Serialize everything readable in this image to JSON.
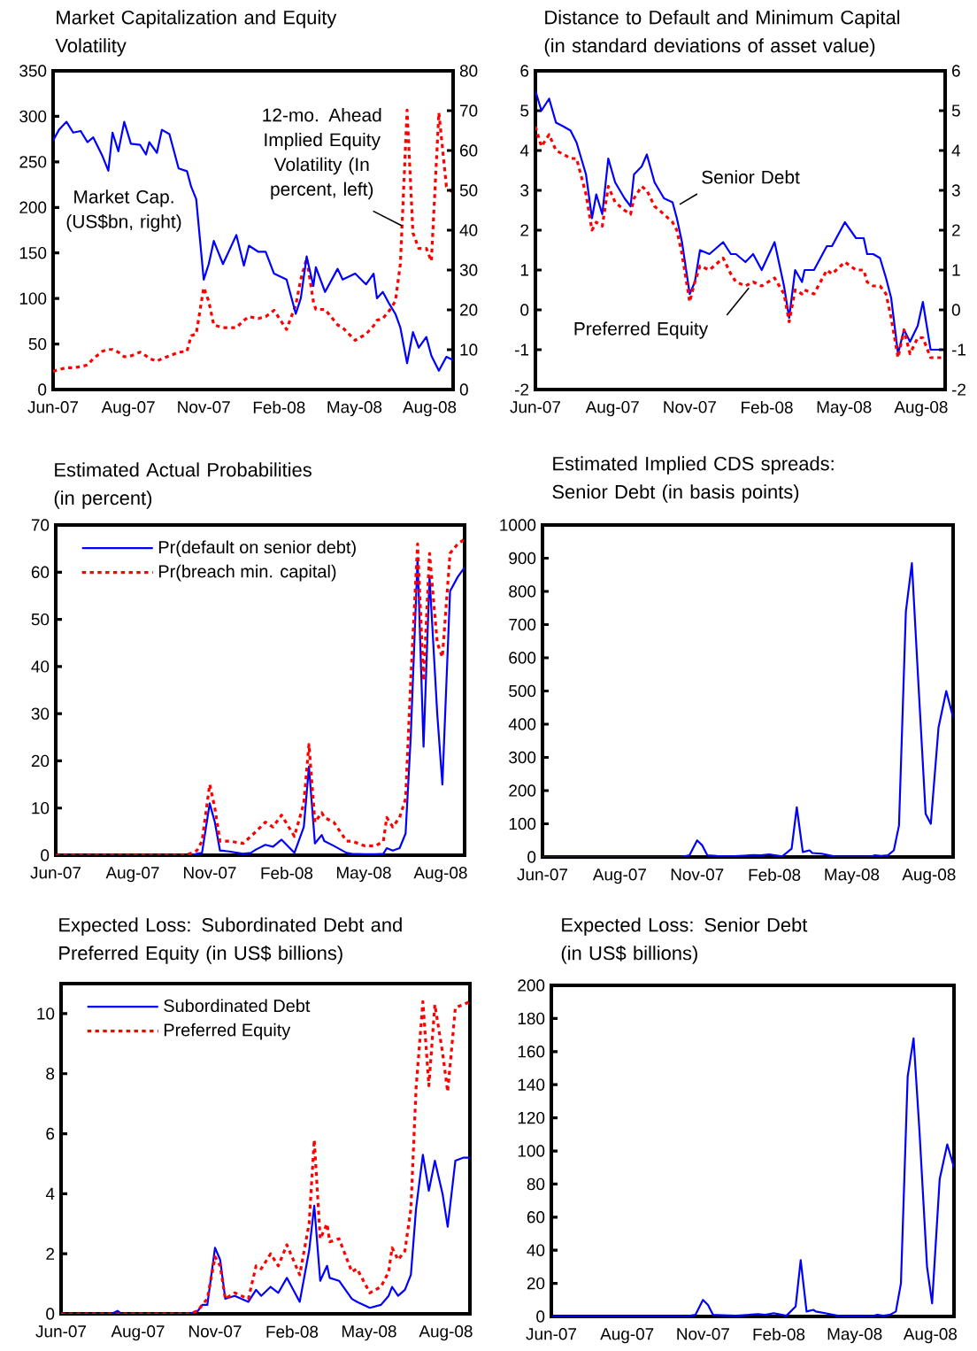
{
  "chart_data": [
    {
      "type": "line",
      "title": "Market Capitalization and Equity Volatility",
      "x": [
        "2007-06-01",
        "2007-06-08",
        "2007-06-17",
        "2007-06-25",
        "2007-07-04",
        "2007-07-12",
        "2007-07-19",
        "2007-07-30",
        "2007-08-06",
        "2007-08-11",
        "2007-08-18",
        "2007-08-25",
        "2007-09-02",
        "2007-09-13",
        "2007-09-20",
        "2007-09-24",
        "2007-10-03",
        "2007-10-09",
        "2007-10-18",
        "2007-10-29",
        "2007-11-08",
        "2007-11-13",
        "2007-11-19",
        "2007-11-28",
        "2007-12-04",
        "2007-12-10",
        "2007-12-21",
        "2008-01-06",
        "2008-01-15",
        "2008-01-21",
        "2008-02-01",
        "2008-02-10",
        "2008-02-20",
        "2008-03-06",
        "2008-03-17",
        "2008-03-23",
        "2008-03-30",
        "2008-04-07",
        "2008-04-10",
        "2008-04-21",
        "2008-05-06",
        "2008-05-12",
        "2008-05-27",
        "2008-06-09",
        "2008-06-18",
        "2008-06-22",
        "2008-06-29",
        "2008-07-07",
        "2008-07-14",
        "2008-07-20",
        "2008-07-28",
        "2008-08-04",
        "2008-08-11",
        "2008-08-20",
        "2008-08-26",
        "2008-09-04",
        "2008-09-13",
        "2008-09-21"
      ],
      "series": [
        {
          "name": "Market Cap. (US$bn, right)",
          "color": "#0000ff",
          "line_style": "solid",
          "axis": "y2",
          "values": [
            62.5,
            65.2,
            67.2,
            64.5,
            64.9,
            62.1,
            63.3,
            58.6,
            54.9,
            64.5,
            59.8,
            67.2,
            61.7,
            61.4,
            59.0,
            62.1,
            59.4,
            65.2,
            64.1,
            55.5,
            54.8,
            50.9,
            47.8,
            27.6,
            31.5,
            37.3,
            31.5,
            38.8,
            31.1,
            36.1,
            34.6,
            34.6,
            29.1,
            27.6,
            19.0,
            22.9,
            33.4,
            26.0,
            30.7,
            24.5,
            30.3,
            27.6,
            29.1,
            26.4,
            29.1,
            22.9,
            24.5,
            21.4,
            19.0,
            15.5,
            6.6,
            14.4,
            10.5,
            13.2,
            8.5,
            4.7,
            8.2,
            7.4
          ]
        },
        {
          "name": "12-mo. Ahead Implied Equity Volatility (In percent, left)",
          "color": "#ff0000",
          "line_style": "dotted",
          "axis": "y",
          "values": [
            20,
            22,
            24,
            24,
            25,
            27,
            34,
            42,
            44,
            44,
            41,
            36,
            37,
            41,
            37,
            34,
            31,
            34,
            37,
            41,
            42,
            59,
            61,
            112,
            97,
            71,
            68,
            68,
            76,
            80,
            78,
            80,
            87,
            66,
            93,
            121,
            144,
            97,
            88,
            88,
            71,
            68,
            54,
            61,
            70,
            76,
            78,
            87,
            97,
            138,
            307,
            172,
            155,
            155,
            141,
            304,
            223,
            216
          ]
        }
      ],
      "xlim": [
        "2007-06-01",
        "2008-09-21"
      ],
      "xticks": [
        {
          "value": "2007-06-01",
          "label": "Jun-07"
        },
        {
          "value": "2007-08-30",
          "label": "Aug-07"
        },
        {
          "value": "2007-11-28",
          "label": "Nov-07"
        },
        {
          "value": "2008-02-26",
          "label": "Feb-08"
        },
        {
          "value": "2008-05-26",
          "label": "May-08"
        },
        {
          "value": "2008-08-24",
          "label": "Aug-08"
        }
      ],
      "ylim": [
        0,
        350
      ],
      "yticks": [
        0,
        50,
        100,
        150,
        200,
        250,
        300,
        350
      ],
      "y2lim": [
        0,
        80
      ],
      "y2ticks": [
        0,
        10,
        20,
        30,
        40,
        50,
        60,
        70,
        80
      ]
    },
    {
      "type": "line",
      "title": "Distance to Default and Minimum Capital (in standard deviations of asset value)",
      "x": [
        "2007-06-01",
        "2007-06-08",
        "2007-06-17",
        "2007-06-25",
        "2007-07-04",
        "2007-07-12",
        "2007-07-19",
        "2007-07-30",
        "2007-08-06",
        "2007-08-11",
        "2007-08-18",
        "2007-08-25",
        "2007-09-02",
        "2007-09-13",
        "2007-09-20",
        "2007-09-24",
        "2007-10-03",
        "2007-10-09",
        "2007-10-18",
        "2007-10-29",
        "2007-11-08",
        "2007-11-13",
        "2007-11-19",
        "2007-11-28",
        "2007-12-04",
        "2007-12-10",
        "2007-12-21",
        "2008-01-06",
        "2008-01-15",
        "2008-01-21",
        "2008-02-01",
        "2008-02-10",
        "2008-02-20",
        "2008-03-06",
        "2008-03-17",
        "2008-03-23",
        "2008-03-30",
        "2008-04-07",
        "2008-04-10",
        "2008-04-21",
        "2008-05-06",
        "2008-05-12",
        "2008-05-27",
        "2008-06-09",
        "2008-06-18",
        "2008-06-22",
        "2008-06-29",
        "2008-07-07",
        "2008-07-14",
        "2008-07-20",
        "2008-07-28",
        "2008-08-04",
        "2008-08-11",
        "2008-08-20",
        "2008-08-26",
        "2008-09-04",
        "2008-09-13",
        "2008-09-21"
      ],
      "series": [
        {
          "name": "Senior Debt",
          "color": "#0000ff",
          "line_style": "solid",
          "values": [
            5.5,
            5.0,
            5.3,
            4.7,
            4.6,
            4.5,
            4.2,
            3.4,
            2.3,
            2.9,
            2.4,
            3.8,
            3.2,
            2.8,
            2.6,
            3.4,
            3.6,
            3.9,
            3.2,
            2.8,
            2.7,
            2.3,
            1.7,
            0.4,
            0.7,
            1.5,
            1.4,
            1.7,
            1.4,
            1.4,
            1.2,
            1.4,
            1.0,
            1.7,
            0.6,
            -0.2,
            1.0,
            0.7,
            1.0,
            1.0,
            1.6,
            1.6,
            2.2,
            1.8,
            1.8,
            1.4,
            1.4,
            1.3,
            0.8,
            0.3,
            -1.1,
            -0.5,
            -0.8,
            -0.4,
            0.2,
            -1.0,
            -1.0,
            -1.0
          ]
        },
        {
          "name": "Preferred Equity",
          "color": "#ff0000",
          "line_style": "dotted",
          "values": [
            4.6,
            4.1,
            4.4,
            4.0,
            3.9,
            3.8,
            3.8,
            2.9,
            2.0,
            2.2,
            2.1,
            3.1,
            2.7,
            2.5,
            2.4,
            2.8,
            3.1,
            3.0,
            2.6,
            2.4,
            2.2,
            2.0,
            1.4,
            0.2,
            0.7,
            1.1,
            1.0,
            1.3,
            0.9,
            0.7,
            0.6,
            0.7,
            0.6,
            0.8,
            0.4,
            -0.3,
            0.5,
            0.4,
            0.5,
            0.4,
            1.0,
            0.9,
            1.2,
            1.0,
            1.0,
            0.7,
            0.6,
            0.6,
            0.4,
            -0.2,
            -1.2,
            -0.5,
            -1.1,
            -0.7,
            -0.7,
            -1.2,
            -1.2,
            -1.2
          ]
        }
      ],
      "xlim": [
        "2007-06-01",
        "2008-09-21"
      ],
      "xticks": [
        {
          "value": "2007-06-01",
          "label": "Jun-07"
        },
        {
          "value": "2007-08-30",
          "label": "Aug-07"
        },
        {
          "value": "2007-11-28",
          "label": "Nov-07"
        },
        {
          "value": "2008-02-26",
          "label": "Feb-08"
        },
        {
          "value": "2008-05-26",
          "label": "May-08"
        },
        {
          "value": "2008-08-24",
          "label": "Aug-08"
        }
      ],
      "ylim": [
        -2,
        6
      ],
      "yticks": [
        -2,
        -1,
        0,
        1,
        2,
        3,
        4,
        5,
        6
      ],
      "y2lim": [
        -2,
        6
      ],
      "y2ticks": [
        -2,
        -1,
        0,
        1,
        2,
        3,
        4,
        5,
        6
      ]
    },
    {
      "type": "line",
      "title": "Estimated Actual Probabilities (in percent)",
      "x": [
        "2007-06-01",
        "2007-06-08",
        "2007-06-17",
        "2007-06-25",
        "2007-07-04",
        "2007-07-12",
        "2007-07-19",
        "2007-07-30",
        "2007-08-06",
        "2007-08-11",
        "2007-08-18",
        "2007-08-25",
        "2007-09-02",
        "2007-09-13",
        "2007-09-20",
        "2007-09-24",
        "2007-10-03",
        "2007-10-09",
        "2007-10-18",
        "2007-10-29",
        "2007-11-08",
        "2007-11-13",
        "2007-11-19",
        "2007-11-28",
        "2007-12-04",
        "2007-12-10",
        "2007-12-21",
        "2008-01-06",
        "2008-01-15",
        "2008-01-21",
        "2008-02-01",
        "2008-02-10",
        "2008-02-20",
        "2008-03-06",
        "2008-03-17",
        "2008-03-23",
        "2008-03-30",
        "2008-04-07",
        "2008-04-10",
        "2008-04-21",
        "2008-05-06",
        "2008-05-12",
        "2008-05-27",
        "2008-06-09",
        "2008-06-18",
        "2008-06-22",
        "2008-06-29",
        "2008-07-07",
        "2008-07-14",
        "2008-07-20",
        "2008-07-28",
        "2008-08-04",
        "2008-08-11",
        "2008-08-20",
        "2008-08-26",
        "2008-09-04",
        "2008-09-13",
        "2008-09-21"
      ],
      "series": [
        {
          "name": "Pr(default on senior debt)",
          "color": "#0000ff",
          "line_style": "solid",
          "values": [
            0,
            0,
            0,
            0,
            0,
            0,
            0,
            0,
            0,
            0,
            0,
            0,
            0,
            0,
            0,
            0,
            0,
            0,
            0,
            0,
            0,
            0.3,
            0.5,
            11,
            7,
            1,
            0.8,
            0.3,
            0.5,
            1.2,
            2.2,
            1.8,
            3.3,
            0.5,
            6,
            18.8,
            2.5,
            4.3,
            3,
            2,
            0.5,
            0.3,
            0.2,
            0.2,
            0.3,
            1.5,
            1,
            1.5,
            4.6,
            25,
            63,
            23,
            59,
            30,
            15,
            56,
            59,
            61
          ]
        },
        {
          "name": "Pr(breach min. capital)",
          "color": "#ff0000",
          "line_style": "dotted",
          "values": [
            0,
            0,
            0,
            0,
            0,
            0,
            0,
            0,
            0,
            0,
            0,
            0,
            0,
            0,
            0,
            0,
            0,
            0,
            0,
            0,
            0.5,
            1,
            3,
            15,
            10,
            3,
            3,
            2.5,
            4,
            5,
            7,
            6,
            8.5,
            4,
            11,
            23.5,
            7,
            9,
            8,
            7,
            3,
            3,
            2,
            2,
            3,
            8,
            6,
            8,
            12,
            37,
            66,
            37,
            64,
            45,
            42,
            64,
            66,
            67
          ]
        }
      ],
      "xlim": [
        "2007-06-01",
        "2008-09-21"
      ],
      "xticks": [
        {
          "value": "2007-06-01",
          "label": "Jun-07"
        },
        {
          "value": "2007-08-30",
          "label": "Aug-07"
        },
        {
          "value": "2007-11-28",
          "label": "Nov-07"
        },
        {
          "value": "2008-02-26",
          "label": "Feb-08"
        },
        {
          "value": "2008-05-26",
          "label": "May-08"
        },
        {
          "value": "2008-08-24",
          "label": "Aug-08"
        }
      ],
      "ylim": [
        0,
        70
      ],
      "yticks": [
        0,
        10,
        20,
        30,
        40,
        50,
        60,
        70
      ],
      "legend": "top left"
    },
    {
      "type": "line",
      "title": "Estimated Implied CDS spreads: Senior Debt (in basis points)",
      "x": [
        "2007-06-01",
        "2007-06-08",
        "2007-06-17",
        "2007-06-25",
        "2007-07-04",
        "2007-07-12",
        "2007-07-19",
        "2007-07-30",
        "2007-08-06",
        "2007-08-11",
        "2007-08-18",
        "2007-08-25",
        "2007-09-02",
        "2007-09-13",
        "2007-09-20",
        "2007-09-24",
        "2007-10-03",
        "2007-10-09",
        "2007-10-18",
        "2007-10-29",
        "2007-11-08",
        "2007-11-13",
        "2007-11-19",
        "2007-11-28",
        "2007-12-04",
        "2007-12-10",
        "2007-12-21",
        "2008-01-06",
        "2008-01-15",
        "2008-01-21",
        "2008-02-01",
        "2008-02-10",
        "2008-02-20",
        "2008-03-06",
        "2008-03-17",
        "2008-03-23",
        "2008-03-30",
        "2008-04-07",
        "2008-04-10",
        "2008-04-21",
        "2008-05-06",
        "2008-05-12",
        "2008-05-27",
        "2008-06-09",
        "2008-06-18",
        "2008-06-22",
        "2008-06-29",
        "2008-07-07",
        "2008-07-14",
        "2008-07-20",
        "2008-07-28",
        "2008-08-04",
        "2008-08-11",
        "2008-08-20",
        "2008-08-26",
        "2008-09-04",
        "2008-09-13",
        "2008-09-21"
      ],
      "series": [
        {
          "color": "#0000ff",
          "line_style": "solid",
          "values": [
            0,
            0,
            0,
            0,
            0,
            0,
            0,
            0,
            0,
            0,
            0,
            0,
            0,
            0,
            0,
            0,
            0,
            0,
            0,
            0,
            0,
            2,
            5,
            50,
            35,
            5,
            3,
            2,
            3,
            4,
            6,
            5,
            8,
            2,
            25,
            150,
            15,
            20,
            12,
            10,
            2,
            1,
            1,
            1,
            2,
            5,
            3,
            5,
            20,
            95,
            740,
            885,
            550,
            130,
            100,
            390,
            500,
            420
          ]
        }
      ],
      "xlim": [
        "2007-06-01",
        "2008-09-21"
      ],
      "xticks": [
        {
          "value": "2007-06-01",
          "label": "Jun-07"
        },
        {
          "value": "2007-08-30",
          "label": "Aug-07"
        },
        {
          "value": "2007-11-28",
          "label": "Nov-07"
        },
        {
          "value": "2008-02-26",
          "label": "Feb-08"
        },
        {
          "value": "2008-05-26",
          "label": "May-08"
        },
        {
          "value": "2008-08-24",
          "label": "Aug-08"
        }
      ],
      "ylim": [
        0,
        1000
      ],
      "yticks": [
        0,
        100,
        200,
        300,
        400,
        500,
        600,
        700,
        800,
        900,
        1000
      ]
    },
    {
      "type": "line",
      "title": "Expected Loss: Subordinated Debt and Preferred Equity (in US$ billions)",
      "x": [
        "2007-06-01",
        "2007-06-08",
        "2007-06-17",
        "2007-06-25",
        "2007-07-04",
        "2007-07-12",
        "2007-07-19",
        "2007-07-30",
        "2007-08-06",
        "2007-08-11",
        "2007-08-18",
        "2007-08-25",
        "2007-09-02",
        "2007-09-13",
        "2007-09-20",
        "2007-09-24",
        "2007-10-03",
        "2007-10-09",
        "2007-10-18",
        "2007-10-29",
        "2007-11-08",
        "2007-11-13",
        "2007-11-19",
        "2007-11-28",
        "2007-12-04",
        "2007-12-10",
        "2007-12-21",
        "2008-01-06",
        "2008-01-15",
        "2008-01-21",
        "2008-02-01",
        "2008-02-10",
        "2008-02-20",
        "2008-03-06",
        "2008-03-17",
        "2008-03-23",
        "2008-03-30",
        "2008-04-07",
        "2008-04-10",
        "2008-04-21",
        "2008-05-06",
        "2008-05-12",
        "2008-05-27",
        "2008-06-09",
        "2008-06-18",
        "2008-06-22",
        "2008-06-29",
        "2008-07-07",
        "2008-07-14",
        "2008-07-20",
        "2008-07-28",
        "2008-08-04",
        "2008-08-11",
        "2008-08-20",
        "2008-08-26",
        "2008-09-04",
        "2008-09-13",
        "2008-09-21"
      ],
      "series": [
        {
          "name": "Subordinated Debt",
          "color": "#0000ff",
          "line_style": "solid",
          "values": [
            0,
            0,
            0,
            0,
            0,
            0,
            0,
            0,
            0.1,
            0,
            0,
            0,
            0,
            0,
            0,
            0,
            0,
            0,
            0,
            0,
            0.1,
            0.3,
            0.3,
            2.2,
            1.8,
            0.5,
            0.6,
            0.4,
            0.8,
            0.6,
            0.9,
            0.7,
            1.2,
            0.4,
            2.1,
            3.6,
            1.1,
            1.6,
            1.2,
            1.1,
            0.5,
            0.4,
            0.2,
            0.3,
            0.6,
            0.9,
            0.6,
            0.8,
            1.3,
            3.5,
            5.3,
            4.1,
            5.1,
            4.0,
            2.9,
            5.1,
            5.2,
            5.2
          ]
        },
        {
          "name": "Preferred Equity",
          "color": "#ff0000",
          "line_style": "dotted",
          "values": [
            0,
            0,
            0,
            0,
            0,
            0,
            0,
            0,
            0,
            0,
            0,
            0,
            0,
            0,
            0,
            0,
            0,
            0,
            0,
            0,
            0.1,
            0.3,
            0.5,
            1.9,
            1.6,
            0.5,
            0.7,
            0.5,
            1.6,
            1.5,
            2.0,
            1.6,
            2.3,
            1.3,
            3.0,
            5.8,
            2.5,
            3.0,
            2.4,
            2.5,
            1.4,
            1.5,
            0.7,
            0.9,
            1.4,
            2.2,
            1.8,
            2.1,
            3.5,
            7.5,
            10.4,
            7.6,
            10.3,
            8.7,
            7.4,
            10.2,
            10.3,
            10.4
          ]
        }
      ],
      "xlim": [
        "2007-06-01",
        "2008-09-21"
      ],
      "xticks": [
        {
          "value": "2007-06-01",
          "label": "Jun-07"
        },
        {
          "value": "2007-08-30",
          "label": "Aug-07"
        },
        {
          "value": "2007-11-28",
          "label": "Nov-07"
        },
        {
          "value": "2008-02-26",
          "label": "Feb-08"
        },
        {
          "value": "2008-05-26",
          "label": "May-08"
        },
        {
          "value": "2008-08-24",
          "label": "Aug-08"
        }
      ],
      "ylim": [
        0,
        11
      ],
      "yticks": [
        0,
        2,
        4,
        6,
        8,
        10
      ],
      "legend": "top left"
    },
    {
      "type": "line",
      "title": "Expected Loss: Senior Debt (in US$ billions)",
      "x": [
        "2007-06-01",
        "2007-06-08",
        "2007-06-17",
        "2007-06-25",
        "2007-07-04",
        "2007-07-12",
        "2007-07-19",
        "2007-07-30",
        "2007-08-06",
        "2007-08-11",
        "2007-08-18",
        "2007-08-25",
        "2007-09-02",
        "2007-09-13",
        "2007-09-20",
        "2007-09-24",
        "2007-10-03",
        "2007-10-09",
        "2007-10-18",
        "2007-10-29",
        "2007-11-08",
        "2007-11-13",
        "2007-11-19",
        "2007-11-28",
        "2007-12-04",
        "2007-12-10",
        "2007-12-21",
        "2008-01-06",
        "2008-01-15",
        "2008-01-21",
        "2008-02-01",
        "2008-02-10",
        "2008-02-20",
        "2008-03-06",
        "2008-03-17",
        "2008-03-23",
        "2008-03-30",
        "2008-04-07",
        "2008-04-10",
        "2008-04-21",
        "2008-05-06",
        "2008-05-12",
        "2008-05-27",
        "2008-06-09",
        "2008-06-18",
        "2008-06-22",
        "2008-06-29",
        "2008-07-07",
        "2008-07-14",
        "2008-07-20",
        "2008-07-28",
        "2008-08-04",
        "2008-08-11",
        "2008-08-20",
        "2008-08-26",
        "2008-09-04",
        "2008-09-13",
        "2008-09-21"
      ],
      "series": [
        {
          "color": "#0000ff",
          "line_style": "solid",
          "values": [
            0,
            0,
            0,
            0,
            0,
            0,
            0,
            0,
            0,
            0,
            0,
            0,
            0,
            0,
            0,
            0,
            0,
            0,
            0,
            0,
            0,
            0.5,
            1,
            10,
            7,
            1,
            0.8,
            0.5,
            0.8,
            1,
            1.5,
            1,
            2,
            0.5,
            6,
            34,
            3,
            4,
            3,
            2,
            0.5,
            0.3,
            0.2,
            0.2,
            0.5,
            1,
            0.5,
            1,
            3,
            20,
            145,
            168,
            112,
            30,
            8,
            83,
            104,
            90
          ]
        }
      ],
      "xlim": [
        "2007-06-01",
        "2008-09-21"
      ],
      "xticks": [
        {
          "value": "2007-06-01",
          "label": "Jun-07"
        },
        {
          "value": "2007-08-30",
          "label": "Aug-07"
        },
        {
          "value": "2007-11-28",
          "label": "Nov-07"
        },
        {
          "value": "2008-02-26",
          "label": "Feb-08"
        },
        {
          "value": "2008-05-26",
          "label": "May-08"
        },
        {
          "value": "2008-08-24",
          "label": "Aug-08"
        }
      ],
      "ylim": [
        0,
        200
      ],
      "yticks": [
        0,
        20,
        40,
        60,
        80,
        100,
        120,
        140,
        160,
        180,
        200
      ]
    }
  ]
}
